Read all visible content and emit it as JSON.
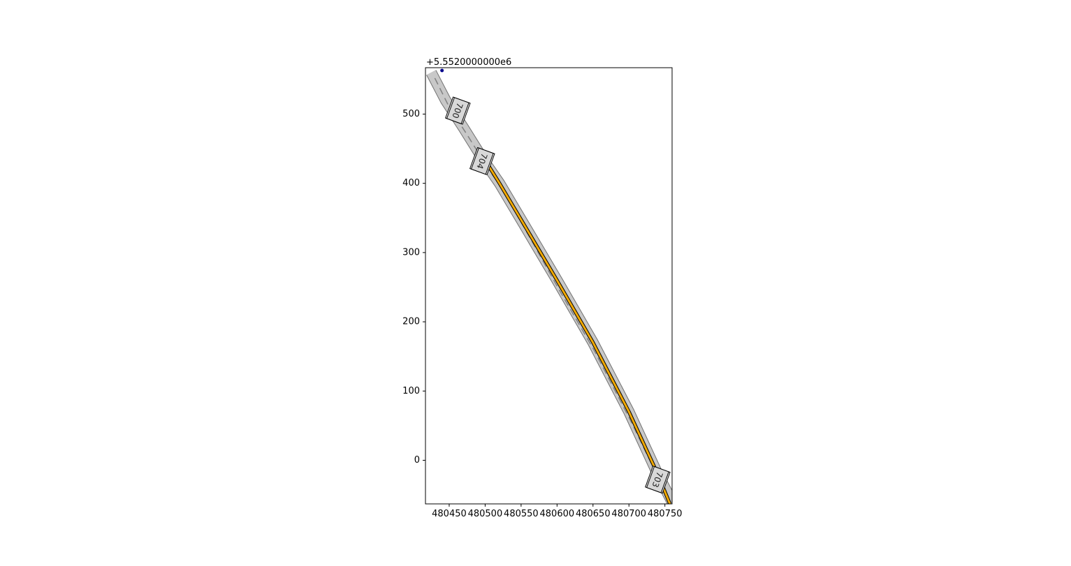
{
  "chart_data": {
    "type": "line",
    "title": "",
    "xlabel": "",
    "ylabel": "",
    "offset_text": "+5.5520000000e6",
    "xlim": [
      480417,
      480760
    ],
    "ylim": [
      -63,
      567
    ],
    "x_ticks": [
      480450,
      480500,
      480550,
      480600,
      480650,
      480700,
      480750
    ],
    "x_tick_labels": [
      "480450",
      "480500",
      "480550",
      "480600",
      "480650",
      "480700",
      "480750"
    ],
    "y_ticks": [
      0,
      100,
      200,
      300,
      400,
      500
    ],
    "y_tick_labels": [
      "0",
      "100",
      "200",
      "300",
      "400",
      "500"
    ],
    "grid": false,
    "series": [
      {
        "style": "road-outline",
        "color": "#c8c8c8",
        "x": [
          480425,
          480445,
          480470,
          480500,
          480520,
          480560,
          480600,
          480650,
          480700,
          480740,
          480760
        ],
        "y": [
          560,
          520,
          480,
          430,
          400,
          330,
          260,
          170,
          70,
          -20,
          -60
        ]
      },
      {
        "style": "lane-dashed",
        "color": "#808080",
        "x": [
          480430,
          480450,
          480475,
          480505,
          480525,
          480563,
          480602,
          480652,
          480702,
          480742
        ],
        "y": [
          552,
          510,
          470,
          420,
          390,
          320,
          248,
          158,
          58,
          -28
        ]
      },
      {
        "style": "route-highlight",
        "color": "#f0a800",
        "x": [
          480505,
          480520,
          480560,
          480600,
          480650,
          480700,
          480740,
          480757
        ],
        "y": [
          425,
          400,
          330,
          260,
          170,
          70,
          -20,
          -63
        ]
      }
    ],
    "points": [
      {
        "x": 480440,
        "y": 563,
        "color": "#00008b"
      }
    ],
    "signs": [
      {
        "text": "700",
        "x": 480462,
        "y": 505,
        "rotation": -70
      },
      {
        "text": "704",
        "x": 480496,
        "y": 432,
        "rotation": -70
      },
      {
        "text": "703",
        "x": 480740,
        "y": -28,
        "rotation": -70
      }
    ]
  }
}
